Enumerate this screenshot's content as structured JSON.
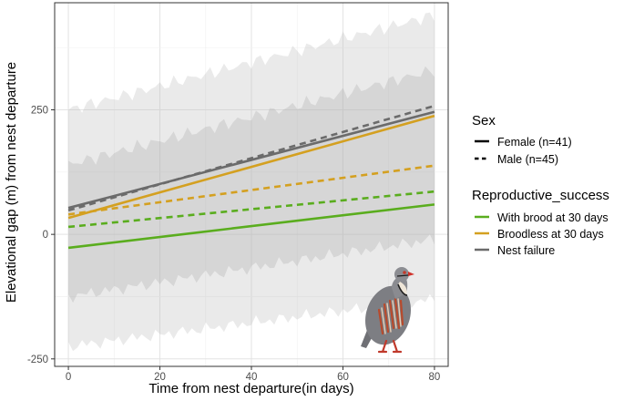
{
  "chart_data": {
    "type": "line",
    "xlabel": "Time from nest departure(in days)",
    "ylabel": "Elevational gap (m) from nest departure",
    "xlim": [
      -3,
      83
    ],
    "ylim": [
      -265,
      465
    ],
    "x_ticks": [
      0,
      20,
      40,
      60,
      80
    ],
    "x_tick_labels": [
      "0",
      "20",
      "40",
      "60",
      "80"
    ],
    "y_ticks": [
      -250,
      0,
      250
    ],
    "y_tick_labels": [
      "-250",
      "0",
      "250"
    ],
    "grid": true,
    "series": [
      {
        "name": "Nest failure - Female",
        "sex": "Female",
        "group": "Nest failure",
        "color": "#6b6b6b",
        "dash": "solid",
        "x": [
          0,
          80
        ],
        "y": [
          53,
          246
        ]
      },
      {
        "name": "Nest failure - Male",
        "sex": "Male",
        "group": "Nest failure",
        "color": "#6b6b6b",
        "dash": "dashed",
        "x": [
          0,
          80
        ],
        "y": [
          48,
          258
        ]
      },
      {
        "name": "Broodless at 30 days - Female",
        "sex": "Female",
        "group": "Broodless at 30 days",
        "color": "#d4a020",
        "dash": "solid",
        "x": [
          0,
          80
        ],
        "y": [
          33,
          238
        ]
      },
      {
        "name": "Broodless at 30 days - Male",
        "sex": "Male",
        "group": "Broodless at 30 days",
        "color": "#d4a020",
        "dash": "dashed",
        "x": [
          0,
          80
        ],
        "y": [
          40,
          138
        ]
      },
      {
        "name": "With brood at 30 days - Female",
        "sex": "Female",
        "group": "With brood at 30 days",
        "color": "#5aad1e",
        "dash": "solid",
        "x": [
          0,
          80
        ],
        "y": [
          -27,
          60
        ]
      },
      {
        "name": "With brood at 30 days - Male",
        "sex": "Male",
        "group": "With brood at 30 days",
        "color": "#5aad1e",
        "dash": "dashed",
        "x": [
          0,
          80
        ],
        "y": [
          15,
          86
        ]
      }
    ],
    "ribbons": [
      {
        "name": "outer-band",
        "x": [
          0,
          80
        ],
        "lower": [
          -225,
          -130
        ],
        "upper": [
          250,
          440
        ]
      },
      {
        "name": "inner-band",
        "x": [
          0,
          80
        ],
        "lower": [
          -125,
          -10
        ],
        "upper": [
          140,
          330
        ]
      }
    ],
    "legend": {
      "position": "right",
      "groups": [
        {
          "title": "Sex",
          "entries": [
            {
              "label": "Female (n=41)",
              "dash": "solid",
              "color": "#000000"
            },
            {
              "label": "Male (n=45)",
              "dash": "dashed",
              "color": "#000000"
            }
          ]
        },
        {
          "title": "Reproductive_success",
          "entries": [
            {
              "label": "With brood at 30 days",
              "dash": "solid",
              "color": "#5aad1e"
            },
            {
              "label": "Broodless at 30 days",
              "dash": "solid",
              "color": "#d4a020"
            },
            {
              "label": "Nest failure",
              "dash": "solid",
              "color": "#6b6b6b"
            }
          ]
        }
      ]
    },
    "annotation": "partridge-illustration"
  }
}
